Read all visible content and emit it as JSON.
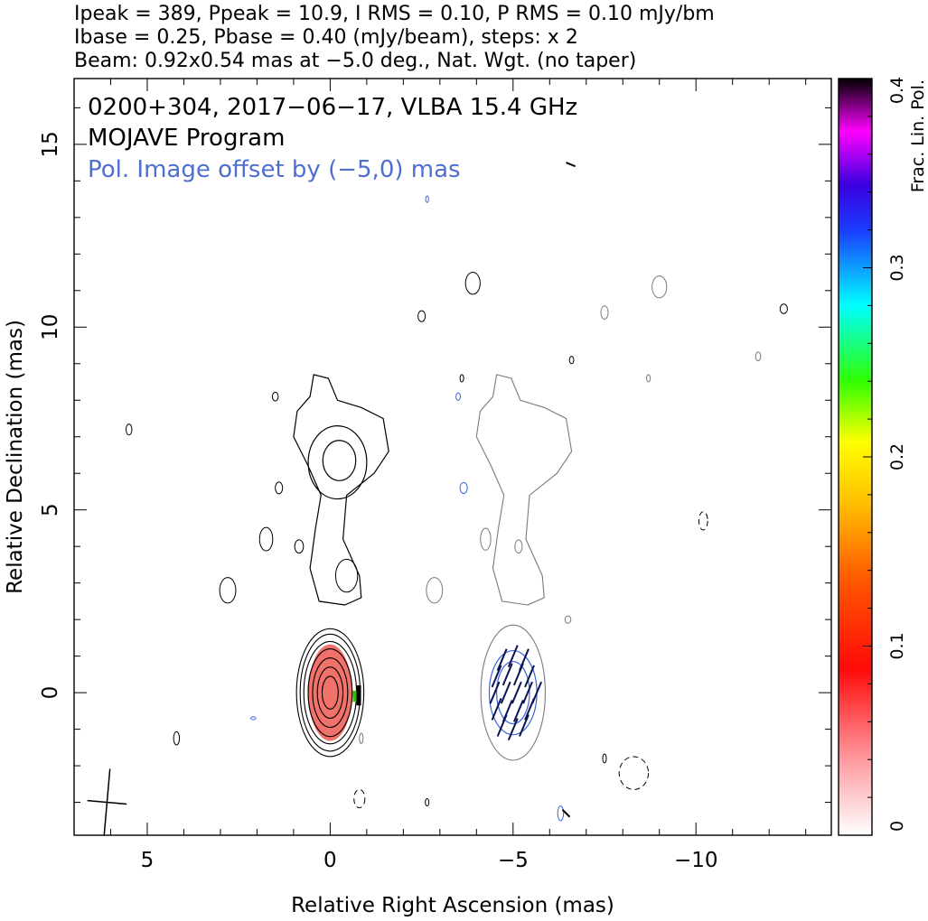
{
  "header": {
    "line1": "Ipeak = 389, Ppeak = 10.9, I RMS = 0.10, P RMS = 0.10 mJy/bm",
    "line2": "Ibase = 0.25, Pbase = 0.40 (mJy/beam), steps: x 2",
    "line3": "Beam: 0.92x0.54 mas at −5.0 deg., Nat. Wgt. (no taper)"
  },
  "annotations": {
    "source": "0200+304, 2017−06−17, VLBA 15.4 GHz",
    "program": "MOJAVE Program",
    "offset": "Pol. Image offset by (−5,0) mas"
  },
  "colors": {
    "total_intensity_contours": "#000000",
    "pol_contours": "#3a63d8",
    "offset_contours": "#7a7a7a",
    "evpa_ticks": "#0a1450",
    "pol_fill": "#f0665e",
    "offset_text": "#4f6fd0"
  },
  "chart_data": {
    "type": "contour",
    "xlabel": "Relative Right Ascension (mas)",
    "ylabel": "Relative Declination (mas)",
    "xlim": [
      7,
      -13.7
    ],
    "ylim": [
      -3.9,
      16.8
    ],
    "xticks": [
      5,
      0,
      -5,
      -10
    ],
    "xtick_labels": [
      "5",
      "0",
      "−5",
      "−10"
    ],
    "yticks": [
      0,
      5,
      10,
      15
    ],
    "ytick_labels": [
      "0",
      "5",
      "10",
      "15"
    ],
    "colorbar": {
      "label": "Frac. Lin. Pol.",
      "range": [
        0,
        0.4
      ],
      "ticks": [
        0,
        0.1,
        0.2,
        0.3,
        0.4
      ],
      "tick_labels": [
        "0",
        "0.1",
        "0.2",
        "0.3",
        "0.4"
      ]
    },
    "beam": {
      "major_mas": 0.92,
      "minor_mas": 0.54,
      "pa_deg": -5.0,
      "center": [
        6.1,
        -3.0
      ]
    },
    "core": {
      "x": 0,
      "y": 0,
      "levels_rx": [
        0.22,
        0.35,
        0.48,
        0.6,
        0.72,
        0.82,
        0.92
      ],
      "levels_ry": [
        0.45,
        0.7,
        0.95,
        1.2,
        1.4,
        1.6,
        1.75
      ]
    },
    "pol_core": {
      "x": -5,
      "y": 0,
      "levels_rx": [
        0.45,
        0.65
      ],
      "levels_ry": [
        0.85,
        1.15
      ]
    },
    "offset_core_rx": 0.88,
    "offset_core_ry": 1.85,
    "evpa_ticks": [
      [
        -4.7,
        0.9
      ],
      [
        -5.0,
        1.0
      ],
      [
        -5.3,
        0.9
      ],
      [
        -4.55,
        0.45
      ],
      [
        -4.85,
        0.5
      ],
      [
        -5.15,
        0.5
      ],
      [
        -5.45,
        0.45
      ],
      [
        -4.5,
        0.0
      ],
      [
        -4.8,
        0.0
      ],
      [
        -5.1,
        0.0
      ],
      [
        -5.4,
        0.0
      ],
      [
        -5.65,
        0.0
      ],
      [
        -4.55,
        -0.45
      ],
      [
        -4.85,
        -0.5
      ],
      [
        -5.15,
        -0.5
      ],
      [
        -5.45,
        -0.45
      ],
      [
        -4.7,
        -0.9
      ],
      [
        -5.0,
        -1.0
      ],
      [
        -5.3,
        -0.9
      ]
    ],
    "noise_blobs": [
      [
        5.5,
        7.2,
        0.08,
        0.15,
        "#000"
      ],
      [
        1.5,
        8.1,
        0.08,
        0.12,
        "#000"
      ],
      [
        4.2,
        -1.25,
        0.08,
        0.18,
        "#000"
      ],
      [
        -2.5,
        10.3,
        0.1,
        0.15,
        "#000"
      ],
      [
        -3.6,
        8.6,
        0.05,
        0.1,
        "#000"
      ],
      [
        -6.6,
        9.1,
        0.06,
        0.1,
        "#000"
      ],
      [
        -2.65,
        13.5,
        0.04,
        0.09,
        "#3a63d8"
      ],
      [
        -7.5,
        10.4,
        0.1,
        0.18,
        "#7a7a7a"
      ],
      [
        -8.7,
        8.6,
        0.05,
        0.1,
        "#7a7a7a"
      ],
      [
        -11.7,
        9.2,
        0.07,
        0.12,
        "#7a7a7a"
      ],
      [
        -12.4,
        10.5,
        0.1,
        0.13,
        "#000"
      ],
      [
        -3.5,
        8.1,
        0.06,
        0.1,
        "#3a63d8"
      ],
      [
        1.4,
        5.6,
        0.1,
        0.16,
        "#000"
      ],
      [
        -3.65,
        5.6,
        0.1,
        0.15,
        "#3a63d8"
      ],
      [
        2.1,
        -0.7,
        0.07,
        0.04,
        "#3a63d8"
      ],
      [
        -0.85,
        -1.25,
        0.05,
        0.14,
        "#7a7a7a"
      ],
      [
        -2.65,
        -3.0,
        0.05,
        0.1,
        "#000"
      ],
      [
        -6.3,
        -3.3,
        0.08,
        0.2,
        "#3a63d8"
      ],
      [
        -7.5,
        -1.8,
        0.05,
        0.12,
        "#000"
      ],
      [
        -6.5,
        2.0,
        0.08,
        0.1,
        "#7a7a7a"
      ],
      [
        2.8,
        2.8,
        0.22,
        0.35,
        "#000"
      ],
      [
        -2.85,
        2.8,
        0.22,
        0.35,
        "#7a7a7a"
      ],
      [
        1.75,
        4.2,
        0.18,
        0.32,
        "#000"
      ],
      [
        -4.25,
        4.2,
        0.14,
        0.3,
        "#7a7a7a"
      ],
      [
        0.85,
        4.0,
        0.12,
        0.18,
        "#000"
      ],
      [
        -5.15,
        4.0,
        0.1,
        0.18,
        "#7a7a7a"
      ],
      [
        -3.9,
        11.2,
        0.2,
        0.3,
        "#000"
      ],
      [
        -9.0,
        11.1,
        0.2,
        0.3,
        "#7a7a7a"
      ],
      [
        -0.45,
        3.2,
        0.3,
        0.45,
        "#000"
      ]
    ],
    "dashed_blobs": [
      [
        -8.3,
        -2.2,
        0.4,
        0.45
      ],
      [
        -10.2,
        4.7,
        0.12,
        0.25
      ],
      [
        -0.8,
        -2.9,
        0.15,
        0.25
      ]
    ],
    "edge_ticks": [
      [
        -6.45,
        14.5,
        -6.7,
        14.4
      ],
      [
        -6.35,
        -3.2,
        -6.55,
        -3.4
      ]
    ]
  }
}
